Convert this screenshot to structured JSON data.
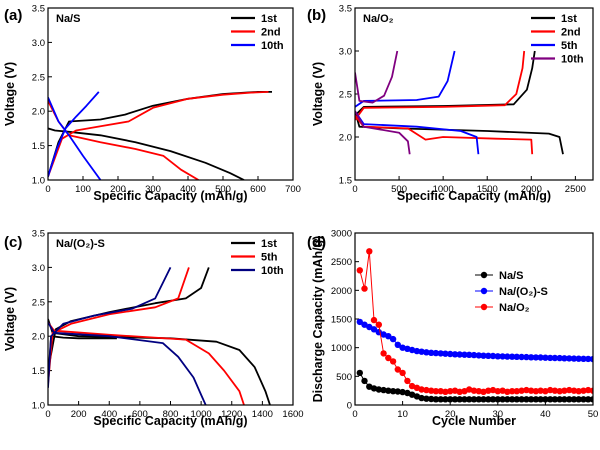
{
  "chart_data": [
    {
      "panel": "(a)",
      "label": "Na/S",
      "type": "line",
      "xlabel": "Specific Capacity (mAh/g)",
      "ylabel": "Voltage (V)",
      "xlim": [
        0,
        700
      ],
      "ylim": [
        1.0,
        3.5
      ],
      "xticks": [
        "0",
        "100",
        "200",
        "300",
        "400",
        "500",
        "600",
        "700"
      ],
      "yticks": [
        "1.0",
        "1.5",
        "2.0",
        "2.5",
        "3.0",
        "3.5"
      ],
      "legend_position": "top-right",
      "series": [
        {
          "name": "1st",
          "color": "#000000",
          "discharge": [
            [
              0,
              1.75
            ],
            [
              20,
              1.72
            ],
            [
              60,
              1.7
            ],
            [
              150,
              1.65
            ],
            [
              250,
              1.55
            ],
            [
              350,
              1.42
            ],
            [
              450,
              1.25
            ],
            [
              520,
              1.1
            ],
            [
              560,
              1.0
            ]
          ],
          "charge": [
            [
              0,
              1.05
            ],
            [
              30,
              1.55
            ],
            [
              60,
              1.85
            ],
            [
              150,
              1.88
            ],
            [
              220,
              1.95
            ],
            [
              300,
              2.08
            ],
            [
              400,
              2.18
            ],
            [
              500,
              2.25
            ],
            [
              600,
              2.28
            ],
            [
              640,
              2.28
            ]
          ]
        },
        {
          "name": "2nd",
          "color": "#ff0000",
          "discharge": [
            [
              0,
              2.15
            ],
            [
              30,
              1.85
            ],
            [
              60,
              1.65
            ],
            [
              150,
              1.55
            ],
            [
              250,
              1.45
            ],
            [
              330,
              1.35
            ],
            [
              380,
              1.15
            ],
            [
              430,
              1.0
            ]
          ],
          "charge": [
            [
              0,
              1.05
            ],
            [
              40,
              1.6
            ],
            [
              80,
              1.72
            ],
            [
              150,
              1.78
            ],
            [
              230,
              1.85
            ],
            [
              300,
              2.05
            ],
            [
              400,
              2.18
            ],
            [
              500,
              2.24
            ],
            [
              580,
              2.27
            ],
            [
              630,
              2.28
            ]
          ]
        },
        {
          "name": "10th",
          "color": "#0000ff",
          "discharge": [
            [
              0,
              2.2
            ],
            [
              30,
              1.85
            ],
            [
              60,
              1.65
            ],
            [
              100,
              1.35
            ],
            [
              150,
              1.0
            ]
          ],
          "charge": [
            [
              0,
              1.05
            ],
            [
              25,
              1.45
            ],
            [
              50,
              1.75
            ],
            [
              80,
              1.92
            ],
            [
              110,
              2.08
            ],
            [
              145,
              2.28
            ]
          ]
        }
      ]
    },
    {
      "panel": "(b)",
      "label": "Na/O₂",
      "type": "line",
      "xlabel": "Specific Capacity (mAh/g)",
      "ylabel": "Voltage (V)",
      "xlim": [
        0,
        2700
      ],
      "ylim": [
        1.5,
        3.5
      ],
      "xticks": [
        "0",
        "500",
        "1000",
        "1500",
        "2000",
        "2500"
      ],
      "yticks": [
        "1.5",
        "2.0",
        "2.5",
        "3.0",
        "3.5"
      ],
      "legend_position": "top-right",
      "series": [
        {
          "name": "1st",
          "color": "#000000",
          "discharge": [
            [
              0,
              2.3
            ],
            [
              50,
              2.12
            ],
            [
              500,
              2.1
            ],
            [
              1500,
              2.07
            ],
            [
              2200,
              2.04
            ],
            [
              2320,
              2.0
            ],
            [
              2360,
              1.8
            ]
          ],
          "charge": [
            [
              0,
              2.25
            ],
            [
              100,
              2.35
            ],
            [
              1000,
              2.36
            ],
            [
              1800,
              2.38
            ],
            [
              1950,
              2.55
            ],
            [
              2010,
              2.8
            ],
            [
              2040,
              3.0
            ]
          ]
        },
        {
          "name": "2nd",
          "color": "#ff0000",
          "discharge": [
            [
              0,
              2.25
            ],
            [
              100,
              2.12
            ],
            [
              600,
              2.1
            ],
            [
              800,
              1.97
            ],
            [
              1000,
              2.0
            ],
            [
              1600,
              1.98
            ],
            [
              2000,
              1.97
            ],
            [
              2010,
              1.8
            ]
          ],
          "charge": [
            [
              0,
              2.2
            ],
            [
              100,
              2.34
            ],
            [
              1000,
              2.35
            ],
            [
              1700,
              2.37
            ],
            [
              1830,
              2.5
            ],
            [
              1900,
              2.8
            ],
            [
              1920,
              3.0
            ]
          ]
        },
        {
          "name": "5th",
          "color": "#0000ff",
          "discharge": [
            [
              0,
              2.3
            ],
            [
              100,
              2.15
            ],
            [
              700,
              2.12
            ],
            [
              1200,
              2.07
            ],
            [
              1380,
              2.0
            ],
            [
              1400,
              1.8
            ]
          ],
          "charge": [
            [
              0,
              2.35
            ],
            [
              100,
              2.42
            ],
            [
              700,
              2.43
            ],
            [
              950,
              2.47
            ],
            [
              1050,
              2.65
            ],
            [
              1130,
              3.0
            ]
          ]
        },
        {
          "name": "10th",
          "color": "#800080",
          "discharge": [
            [
              0,
              2.3
            ],
            [
              100,
              2.12
            ],
            [
              500,
              2.05
            ],
            [
              600,
              1.95
            ],
            [
              620,
              1.8
            ]
          ],
          "charge": [
            [
              0,
              2.75
            ],
            [
              50,
              2.42
            ],
            [
              200,
              2.4
            ],
            [
              330,
              2.48
            ],
            [
              420,
              2.7
            ],
            [
              480,
              3.0
            ]
          ]
        }
      ]
    },
    {
      "panel": "(c)",
      "label": "Na/(O₂)-S",
      "type": "line",
      "xlabel": "Specific Capacity (mAh/g)",
      "ylabel": "Voltage (V)",
      "xlim": [
        0,
        1600
      ],
      "ylim": [
        1.0,
        3.5
      ],
      "xticks": [
        "0",
        "200",
        "400",
        "600",
        "800",
        "1000",
        "1200",
        "1400",
        "1600"
      ],
      "yticks": [
        "1.0",
        "1.5",
        "2.0",
        "2.5",
        "3.0",
        "3.5"
      ],
      "legend_position": "top-right",
      "series": [
        {
          "name": "1st",
          "color": "#000000",
          "discharge": [
            [
              0,
              2.25
            ],
            [
              30,
              2.05
            ],
            [
              200,
              2.0
            ],
            [
              800,
              1.97
            ],
            [
              1100,
              1.92
            ],
            [
              1250,
              1.8
            ],
            [
              1350,
              1.55
            ],
            [
              1420,
              1.2
            ],
            [
              1450,
              1.0
            ]
          ],
          "charge": [
            [
              0,
              1.35
            ],
            [
              20,
              2.0
            ],
            [
              100,
              1.98
            ],
            [
              200,
              1.97
            ],
            [
              450,
              1.97
            ]
          ],
          "charge2": [
            [
              0,
              1.5
            ],
            [
              50,
              2.1
            ],
            [
              150,
              2.22
            ],
            [
              400,
              2.35
            ],
            [
              700,
              2.48
            ],
            [
              900,
              2.55
            ],
            [
              1000,
              2.7
            ],
            [
              1050,
              3.0
            ]
          ]
        },
        {
          "name": "5th",
          "color": "#ff0000",
          "discharge": [
            [
              0,
              2.2
            ],
            [
              40,
              2.08
            ],
            [
              400,
              2.02
            ],
            [
              900,
              1.95
            ],
            [
              1050,
              1.75
            ],
            [
              1150,
              1.5
            ],
            [
              1250,
              1.2
            ],
            [
              1280,
              1.0
            ]
          ],
          "charge": [
            [
              0,
              1.3
            ],
            [
              30,
              2.05
            ],
            [
              150,
              2.18
            ],
            [
              400,
              2.32
            ],
            [
              700,
              2.42
            ],
            [
              850,
              2.55
            ],
            [
              920,
              3.0
            ]
          ]
        },
        {
          "name": "10th",
          "color": "#000080",
          "discharge": [
            [
              0,
              2.2
            ],
            [
              40,
              2.05
            ],
            [
              400,
              2.0
            ],
            [
              750,
              1.9
            ],
            [
              850,
              1.7
            ],
            [
              950,
              1.4
            ],
            [
              1000,
              1.15
            ],
            [
              1030,
              1.0
            ]
          ],
          "charge": [
            [
              0,
              1.25
            ],
            [
              20,
              2.0
            ],
            [
              100,
              2.18
            ],
            [
              300,
              2.3
            ],
            [
              550,
              2.4
            ],
            [
              700,
              2.55
            ],
            [
              800,
              3.0
            ]
          ]
        }
      ]
    },
    {
      "panel": "(d)",
      "type": "scatter",
      "xlabel": "Cycle Number",
      "ylabel": "Discharge Capacity (mAh/g)",
      "xlim": [
        0,
        50
      ],
      "ylim": [
        0,
        3000
      ],
      "xticks": [
        "0",
        "10",
        "20",
        "30",
        "40",
        "50"
      ],
      "yticks": [
        "0",
        "500",
        "1000",
        "1500",
        "2000",
        "2500",
        "3000"
      ],
      "legend_position": "top-right",
      "x": [
        1,
        2,
        3,
        4,
        5,
        6,
        7,
        8,
        9,
        10,
        11,
        12,
        13,
        14,
        15,
        16,
        17,
        18,
        19,
        20,
        21,
        22,
        23,
        24,
        25,
        26,
        27,
        28,
        29,
        30,
        31,
        32,
        33,
        34,
        35,
        36,
        37,
        38,
        39,
        40,
        41,
        42,
        43,
        44,
        45,
        46,
        47,
        48,
        49,
        50
      ],
      "series": [
        {
          "name": "Na/S",
          "color": "#000000",
          "values": [
            560,
            420,
            320,
            290,
            270,
            260,
            250,
            240,
            235,
            225,
            210,
            180,
            150,
            120,
            110,
            105,
            100,
            100,
            100,
            100,
            100,
            100,
            100,
            100,
            100,
            100,
            100,
            100,
            100,
            100,
            100,
            100,
            100,
            100,
            100,
            100,
            100,
            100,
            100,
            100,
            100,
            100,
            100,
            100,
            100,
            100,
            100,
            100,
            100,
            100
          ]
        },
        {
          "name": "Na/(O₂)-S",
          "color": "#0000ff",
          "values": [
            1450,
            1400,
            1360,
            1320,
            1270,
            1230,
            1200,
            1150,
            1050,
            1000,
            980,
            960,
            940,
            930,
            920,
            910,
            905,
            900,
            895,
            890,
            885,
            880,
            878,
            875,
            870,
            865,
            860,
            858,
            855,
            850,
            848,
            845,
            842,
            840,
            838,
            835,
            832,
            830,
            828,
            825,
            822,
            820,
            818,
            815,
            812,
            810,
            808,
            806,
            804,
            800
          ]
        },
        {
          "name": "Na/O₂",
          "color": "#ff0000",
          "values": [
            2350,
            2030,
            2680,
            1480,
            1400,
            900,
            820,
            760,
            620,
            560,
            420,
            330,
            300,
            270,
            260,
            250,
            240,
            240,
            230,
            240,
            250,
            230,
            240,
            270,
            250,
            240,
            230,
            250,
            260,
            240,
            250,
            230,
            240,
            240,
            250,
            260,
            250,
            240,
            250,
            240,
            260,
            250,
            240,
            250,
            260,
            250,
            240,
            250,
            260,
            250
          ]
        }
      ]
    }
  ]
}
